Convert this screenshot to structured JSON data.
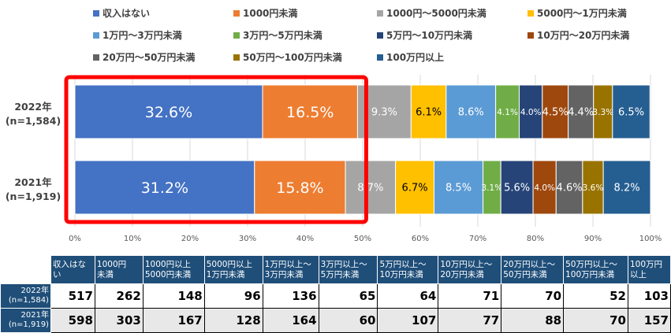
{
  "chart_data": {
    "type": "bar",
    "orientation": "horizontal-stacked-100",
    "legend_position": "top",
    "categories": [
      "2022年\n(n=1,584)",
      "2021年\n(n=1,919)"
    ],
    "series": [
      {
        "name": "収入はない",
        "color": "#4472c4",
        "values": [
          32.6,
          31.2
        ],
        "labels": [
          "32.6%",
          "31.2%"
        ]
      },
      {
        "name": "1000円未満",
        "color": "#ed7d31",
        "values": [
          16.5,
          15.8
        ],
        "labels": [
          "16.5%",
          "15.8%"
        ]
      },
      {
        "name": "1000円～5000円未満",
        "color": "#a5a5a5",
        "values": [
          9.3,
          8.7
        ],
        "labels": [
          "9.3%",
          "8.7%"
        ]
      },
      {
        "name": "5000円～1万円未満",
        "color": "#ffc000",
        "values": [
          6.1,
          6.7
        ],
        "labels": [
          "6.1%",
          "6.7%"
        ]
      },
      {
        "name": "1万円～3万円未満",
        "color": "#5b9bd5",
        "values": [
          8.6,
          8.5
        ],
        "labels": [
          "8.6%",
          "8.5%"
        ]
      },
      {
        "name": "3万円～5万円未満",
        "color": "#70ad47",
        "values": [
          4.1,
          3.1
        ],
        "labels": [
          "4.1%",
          "3.1%"
        ]
      },
      {
        "name": "5万円～10万円未満",
        "color": "#264478",
        "values": [
          4.0,
          5.6
        ],
        "labels": [
          "4.0%",
          "5.6%"
        ]
      },
      {
        "name": "10万円～20万円未満",
        "color": "#9e480e",
        "values": [
          4.5,
          4.0
        ],
        "labels": [
          "4.5%",
          "4.0%"
        ]
      },
      {
        "name": "20万円～50万円未満",
        "color": "#636363",
        "values": [
          4.4,
          4.6
        ],
        "labels": [
          "4.4%",
          "4.6%"
        ]
      },
      {
        "name": "50万円～100万円未満",
        "color": "#997300",
        "values": [
          3.3,
          3.6
        ],
        "labels": [
          "3.3%",
          "3.6%"
        ]
      },
      {
        "name": "100万円以上",
        "color": "#255e91",
        "values": [
          6.5,
          8.2
        ],
        "labels": [
          "6.5%",
          "8.2%"
        ]
      }
    ],
    "xlim": [
      0,
      100
    ],
    "x_ticks": [
      "0%",
      "10%",
      "20%",
      "30%",
      "40%",
      "50%",
      "60%",
      "70%",
      "80%",
      "90%",
      "100%"
    ],
    "grid": true,
    "highlight_color": "#ff0000"
  },
  "table": {
    "columns": [
      "収入はない",
      "1000円\n未満",
      "1000円以上\n5000円未満",
      "5000円以上\n1万円未満",
      "1万円以上～\n3万円未満",
      "3万円以上～\n5万円未満",
      "5万円以上～\n10万円未満",
      "10万円以上～\n20万円未満",
      "20万円以上～\n50万円未満",
      "50万円以上～\n100万円未満",
      "100万円\n以上"
    ],
    "rows": [
      {
        "label": "2022年\n(n=1,584)",
        "values": [
          "517",
          "262",
          "148",
          "96",
          "136",
          "65",
          "64",
          "71",
          "70",
          "52",
          "103"
        ]
      },
      {
        "label": "2021年\n(n=1,919)",
        "values": [
          "598",
          "303",
          "167",
          "128",
          "164",
          "60",
          "107",
          "77",
          "88",
          "70",
          "157"
        ]
      }
    ]
  }
}
